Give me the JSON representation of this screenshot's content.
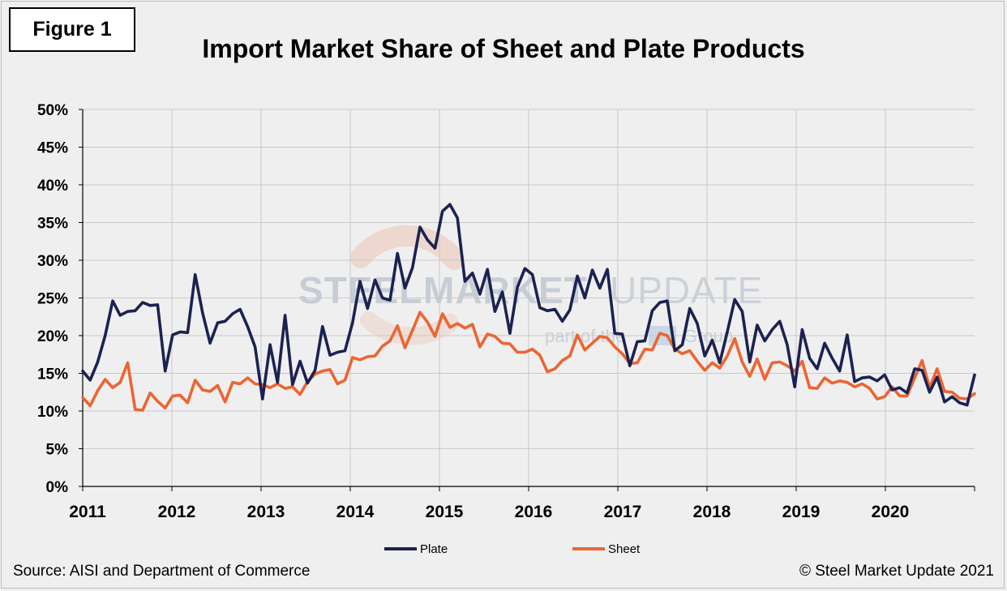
{
  "figure_label": "Figure 1",
  "source": "Source: AISI and Department of Commerce",
  "copyright": "© Steel Market Update 2021",
  "watermark": {
    "word1": "STEEL",
    "word2": "MARKET",
    "word3": "UPDATE",
    "tagline_start": "part of the",
    "tagline_end": "Group"
  },
  "colors": {
    "plate": "#1b2251",
    "sheet": "#ec6532",
    "grid": "#c9c9c9",
    "axis": "#000000",
    "watermark_arc": "#e2693b"
  },
  "chart_data": {
    "type": "line",
    "title": "Import Market Share of Sheet and Plate Products",
    "xlabel": "",
    "ylabel": "",
    "ylim": [
      0,
      50
    ],
    "yticks": [
      "0%",
      "5%",
      "10%",
      "15%",
      "20%",
      "25%",
      "30%",
      "35%",
      "40%",
      "45%",
      "50%"
    ],
    "year_labels": [
      "2011",
      "2012",
      "2013",
      "2014",
      "2015",
      "2016",
      "2017",
      "2018",
      "2019",
      "2020"
    ],
    "x_start": "2011-01",
    "x_end": "2020-12",
    "legend_position": "bottom",
    "series": [
      {
        "name": "Plate",
        "values": [
          15.3,
          14.1,
          16.5,
          20.0,
          24.6,
          22.7,
          23.2,
          23.3,
          24.4,
          24.0,
          24.1,
          15.3,
          20.1,
          20.5,
          20.4,
          28.1,
          23.0,
          19.0,
          21.7,
          21.9,
          22.9,
          23.5,
          21.2,
          18.5,
          11.6,
          18.8,
          13.8,
          22.7,
          13.5,
          16.6,
          13.7,
          15.4,
          21.2,
          17.4,
          17.8,
          18.0,
          21.7,
          27.2,
          23.6,
          27.4,
          25.0,
          24.7,
          30.9,
          26.3,
          29.0,
          34.4,
          32.7,
          31.6,
          36.5,
          37.4,
          35.6,
          27.2,
          28.3,
          25.5,
          28.8,
          23.2,
          25.8,
          20.3,
          26.4,
          28.9,
          28.1,
          23.7,
          23.3,
          23.5,
          21.9,
          23.4,
          27.9,
          25.0,
          28.7,
          26.3,
          28.8,
          20.3,
          20.2,
          16.0,
          19.2,
          19.3,
          23.3,
          24.4,
          24.6,
          18.0,
          18.8,
          23.6,
          21.6,
          17.3,
          19.4,
          16.4,
          20.5,
          24.8,
          23.2,
          16.5,
          21.4,
          19.3,
          20.8,
          21.9,
          18.8,
          13.2,
          20.8,
          17.0,
          15.6,
          19.0,
          17.0,
          15.3,
          20.1,
          13.9,
          14.4,
          14.5,
          14.0,
          14.8,
          12.8,
          13.1,
          12.4,
          15.6,
          15.4,
          12.5,
          14.5,
          11.2,
          11.9,
          11.1,
          10.8,
          14.8
        ]
      },
      {
        "name": "Sheet",
        "values": [
          11.8,
          10.7,
          12.7,
          14.2,
          13.1,
          13.8,
          16.4,
          10.2,
          10.1,
          12.4,
          11.3,
          10.4,
          12.0,
          12.1,
          11.1,
          14.1,
          12.8,
          12.6,
          13.4,
          11.2,
          13.8,
          13.6,
          14.4,
          13.6,
          13.5,
          13.1,
          13.6,
          13.0,
          13.2,
          12.2,
          13.9,
          14.9,
          15.3,
          15.5,
          13.6,
          14.1,
          17.1,
          16.8,
          17.2,
          17.3,
          18.6,
          19.3,
          21.3,
          18.4,
          20.7,
          23.1,
          21.8,
          19.9,
          22.9,
          21.1,
          21.6,
          21.0,
          21.5,
          18.5,
          20.2,
          19.9,
          19.0,
          18.9,
          17.8,
          17.8,
          18.2,
          17.4,
          15.2,
          15.6,
          16.7,
          17.3,
          20.1,
          18.1,
          19.0,
          19.9,
          19.7,
          18.5,
          17.6,
          16.3,
          16.4,
          18.2,
          18.1,
          20.3,
          20.0,
          18.2,
          17.6,
          18.0,
          16.6,
          15.4,
          16.4,
          15.7,
          17.3,
          19.6,
          16.5,
          14.6,
          16.9,
          14.2,
          16.4,
          16.5,
          16.0,
          15.3,
          16.6,
          13.1,
          13.0,
          14.4,
          13.7,
          14.0,
          13.8,
          13.2,
          13.6,
          13.0,
          11.6,
          11.9,
          13.2,
          12.0,
          12.0,
          14.4,
          16.7,
          13.1,
          15.6,
          12.6,
          12.5,
          11.7,
          11.6,
          12.3
        ]
      }
    ]
  }
}
